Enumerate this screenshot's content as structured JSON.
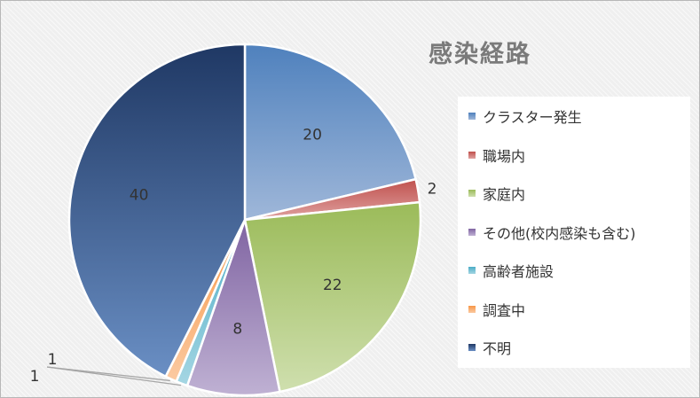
{
  "chart_data": {
    "type": "pie",
    "title": "感染経路",
    "slices": [
      {
        "label": "クラスター発生",
        "value": 20,
        "color": "#4f81bd",
        "light": "#9fb7d9"
      },
      {
        "label": "職場内",
        "value": 2,
        "color": "#c0504d",
        "light": "#dfa2a0"
      },
      {
        "label": "家庭内",
        "value": 22,
        "color": "#9bbb59",
        "light": "#cfdfae"
      },
      {
        "label": "その他(校内感染も含む)",
        "value": 8,
        "color": "#8064a2",
        "light": "#bfb1d3"
      },
      {
        "label": "高齢者施設",
        "value": 1,
        "color": "#4bacc6",
        "light": "#a5d6e3"
      },
      {
        "label": "調査中",
        "value": 1,
        "color": "#f79646",
        "light": "#fbcaa2"
      },
      {
        "label": "不明",
        "value": 40,
        "color": "#1f3864",
        "light": "#6a8fc4"
      }
    ],
    "legend_position": "right"
  }
}
